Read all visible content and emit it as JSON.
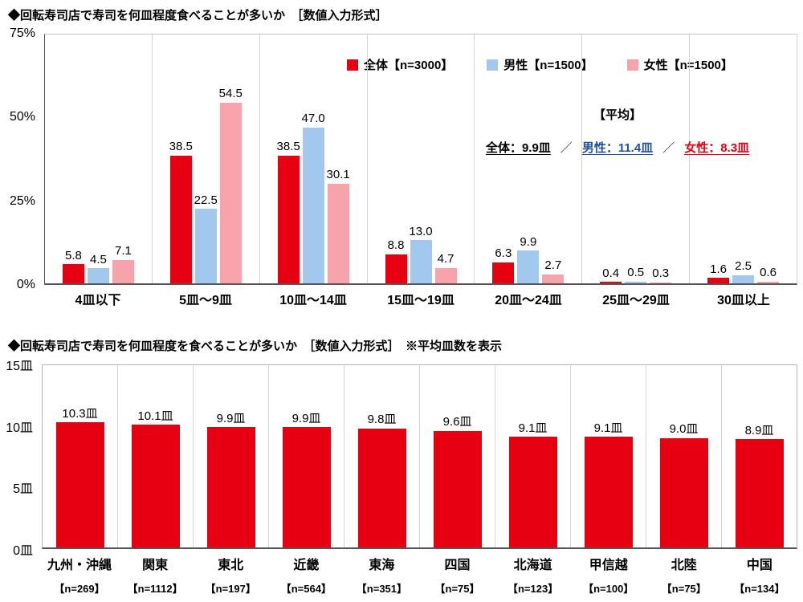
{
  "accent_color": "#e60012",
  "chart_data": [
    {
      "type": "bar",
      "title": "◆回転寿司店で寿司を何皿程度食べることが多いか　［数値入力形式］",
      "categories": [
        "4皿以下",
        "5皿～9皿",
        "10皿～14皿",
        "15皿～19皿",
        "20皿～24皿",
        "25皿～29皿",
        "30皿以上"
      ],
      "series": [
        {
          "name": "全体【n=3000】",
          "color": "#e60012",
          "values": [
            5.8,
            38.5,
            38.5,
            8.8,
            6.3,
            0.4,
            1.6
          ]
        },
        {
          "name": "男性【n=1500】",
          "color": "#a2c8ee",
          "values": [
            4.5,
            22.5,
            47.0,
            13.0,
            9.9,
            0.5,
            2.5
          ]
        },
        {
          "name": "女性【n=1500】",
          "color": "#f6a3ab",
          "values": [
            7.1,
            54.5,
            30.1,
            4.7,
            2.7,
            0.3,
            0.6
          ]
        }
      ],
      "ylim": [
        0,
        75
      ],
      "yticks": [
        "0%",
        "25%",
        "50%",
        "75%"
      ],
      "grid": "vertical-separators",
      "legend_position": "top-right",
      "annotation": {
        "heading": "【平均】",
        "separator": "／",
        "items": [
          {
            "text": "全体：9.9皿",
            "color": "#000000"
          },
          {
            "text": "男性：11.4皿",
            "color": "#1f51a0"
          },
          {
            "text": "女性：8.3皿",
            "color": "#e60012"
          }
        ]
      }
    },
    {
      "type": "bar",
      "title": "◆回転寿司店で寿司を何皿程度を食べることが多いか　［数値入力形式］　※平均皿数を表示",
      "categories": [
        "九州・沖縄",
        "関東",
        "東北",
        "近畿",
        "東海",
        "四国",
        "北海道",
        "甲信越",
        "北陸",
        "中国"
      ],
      "sample_sizes": [
        "【n=269】",
        "【n=1112】",
        "【n=197】",
        "【n=564】",
        "【n=351】",
        "【n=75】",
        "【n=123】",
        "【n=100】",
        "【n=75】",
        "【n=134】"
      ],
      "values": [
        10.3,
        10.1,
        9.9,
        9.9,
        9.8,
        9.6,
        9.1,
        9.1,
        9.0,
        8.9
      ],
      "unit": "皿",
      "bar_color": "#e60012",
      "ylim": [
        0,
        15
      ],
      "yticks": [
        "0皿",
        "5皿",
        "10皿",
        "15皿"
      ],
      "grid": "vertical-separators"
    }
  ]
}
